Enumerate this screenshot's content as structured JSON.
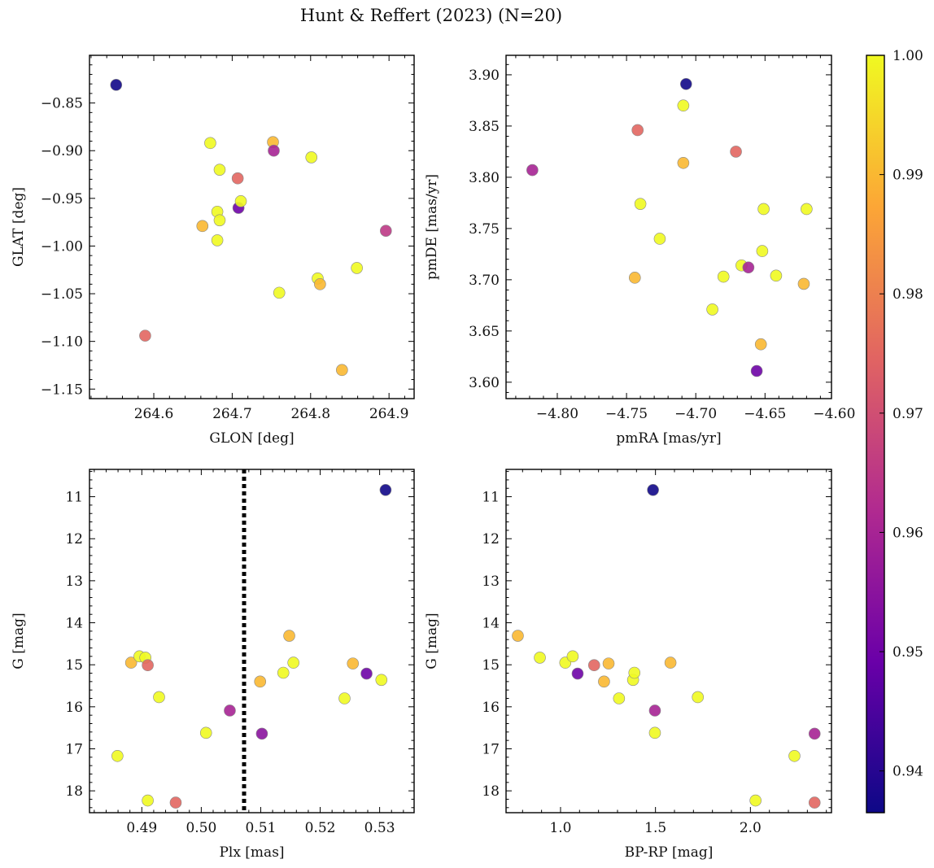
{
  "figure": {
    "title": "Hunt & Reffert (2023) (N=20)"
  },
  "colors": {
    "colormap": [
      "#0d0887",
      "#6a00a8",
      "#b12a90",
      "#e16462",
      "#fca636",
      "#f0f921"
    ],
    "reference_line": "#000000",
    "marker_edge": "#888888"
  },
  "colorbar": {
    "range": [
      0.9365,
      1.0
    ],
    "ticks": [
      0.94,
      0.95,
      0.96,
      0.97,
      0.98,
      0.99,
      1.0
    ],
    "tick_labels": [
      "0.94",
      "0.95",
      "0.96",
      "0.97",
      "0.98",
      "0.99",
      "1.00"
    ]
  },
  "chart_data": [
    {
      "type": "scatter",
      "xlabel": "GLON [deg]",
      "ylabel": "GLAT [deg]",
      "xlim": [
        264.518,
        264.932
      ],
      "ylim": [
        -1.16,
        -0.8
      ],
      "invert_y": false,
      "xticks": [
        264.6,
        264.7,
        264.8,
        264.9
      ],
      "xtick_labels": [
        "264.6",
        "264.7",
        "264.8",
        "264.9"
      ],
      "yticks": [
        -0.85,
        -0.9,
        -0.95,
        -1.0,
        -1.05,
        -1.1,
        -1.15
      ],
      "ytick_labels": [
        "−0.85",
        "−0.90",
        "−0.95",
        "−1.00",
        "−1.05",
        "−1.10",
        "−1.15"
      ],
      "points": [
        {
          "x": 264.552,
          "y": -0.831,
          "c": 0.937
        },
        {
          "x": 264.589,
          "y": -1.094,
          "c": 0.975
        },
        {
          "x": 264.662,
          "y": -0.979,
          "c": 0.99
        },
        {
          "x": 264.672,
          "y": -0.892,
          "c": 1.0
        },
        {
          "x": 264.681,
          "y": -0.964,
          "c": 1.0
        },
        {
          "x": 264.681,
          "y": -0.994,
          "c": 1.0
        },
        {
          "x": 264.684,
          "y": -0.92,
          "c": 1.0
        },
        {
          "x": 264.684,
          "y": -0.973,
          "c": 1.0
        },
        {
          "x": 264.707,
          "y": -0.929,
          "c": 0.975
        },
        {
          "x": 264.708,
          "y": -0.96,
          "c": 0.95
        },
        {
          "x": 264.711,
          "y": -0.953,
          "c": 1.0
        },
        {
          "x": 264.752,
          "y": -0.891,
          "c": 0.99
        },
        {
          "x": 264.753,
          "y": -0.9,
          "c": 0.96
        },
        {
          "x": 264.76,
          "y": -1.049,
          "c": 1.0
        },
        {
          "x": 264.801,
          "y": -0.907,
          "c": 1.0
        },
        {
          "x": 264.809,
          "y": -1.034,
          "c": 1.0
        },
        {
          "x": 264.812,
          "y": -1.04,
          "c": 0.99
        },
        {
          "x": 264.84,
          "y": -1.13,
          "c": 0.99
        },
        {
          "x": 264.859,
          "y": -1.023,
          "c": 1.0
        },
        {
          "x": 264.896,
          "y": -0.984,
          "c": 0.965
        }
      ]
    },
    {
      "type": "scatter",
      "xlabel": "pmRA [mas/yr]",
      "ylabel": "pmDE [mas/yr]",
      "xlim": [
        -4.837,
        -4.602
      ],
      "ylim": [
        3.584,
        3.919
      ],
      "invert_y": false,
      "xticks": [
        -4.8,
        -4.75,
        -4.7,
        -4.65,
        -4.6
      ],
      "xtick_labels": [
        "−4.80",
        "−4.75",
        "−4.70",
        "−4.65",
        "−4.60"
      ],
      "yticks": [
        3.6,
        3.65,
        3.7,
        3.75,
        3.8,
        3.85,
        3.9
      ],
      "ytick_labels": [
        "3.60",
        "3.65",
        "3.70",
        "3.75",
        "3.80",
        "3.85",
        "3.90"
      ],
      "points": [
        {
          "x": -4.818,
          "y": 3.807,
          "c": 0.96
        },
        {
          "x": -4.744,
          "y": 3.702,
          "c": 0.99
        },
        {
          "x": -4.742,
          "y": 3.846,
          "c": 0.975
        },
        {
          "x": -4.74,
          "y": 3.774,
          "c": 1.0
        },
        {
          "x": -4.726,
          "y": 3.74,
          "c": 1.0
        },
        {
          "x": -4.709,
          "y": 3.814,
          "c": 0.99
        },
        {
          "x": -4.709,
          "y": 3.87,
          "c": 1.0
        },
        {
          "x": -4.707,
          "y": 3.891,
          "c": 0.937
        },
        {
          "x": -4.688,
          "y": 3.671,
          "c": 1.0
        },
        {
          "x": -4.68,
          "y": 3.703,
          "c": 1.0
        },
        {
          "x": -4.671,
          "y": 3.825,
          "c": 0.975
        },
        {
          "x": -4.667,
          "y": 3.714,
          "c": 1.0
        },
        {
          "x": -4.662,
          "y": 3.712,
          "c": 0.96
        },
        {
          "x": -4.656,
          "y": 3.611,
          "c": 0.95
        },
        {
          "x": -4.653,
          "y": 3.637,
          "c": 0.99
        },
        {
          "x": -4.652,
          "y": 3.728,
          "c": 1.0
        },
        {
          "x": -4.651,
          "y": 3.769,
          "c": 1.0
        },
        {
          "x": -4.642,
          "y": 3.704,
          "c": 1.0
        },
        {
          "x": -4.622,
          "y": 3.696,
          "c": 0.99
        },
        {
          "x": -4.62,
          "y": 3.769,
          "c": 1.0
        }
      ]
    },
    {
      "type": "scatter",
      "xlabel": "Plx [mas]",
      "ylabel": "G [mag]",
      "xlim": [
        0.4812,
        0.5358
      ],
      "ylim": [
        10.35,
        18.52
      ],
      "invert_y": true,
      "reference_x": 0.5072,
      "xticks": [
        0.49,
        0.5,
        0.51,
        0.52,
        0.53
      ],
      "xtick_labels": [
        "0.49",
        "0.50",
        "0.51",
        "0.52",
        "0.53"
      ],
      "yticks": [
        11,
        12,
        13,
        14,
        15,
        16,
        17,
        18
      ],
      "ytick_labels": [
        "11",
        "12",
        "13",
        "14",
        "15",
        "16",
        "17",
        "18"
      ],
      "points": [
        {
          "x": 0.4859,
          "y": 17.17,
          "c": 1.0
        },
        {
          "x": 0.4882,
          "y": 14.95,
          "c": 0.99
        },
        {
          "x": 0.4896,
          "y": 14.8,
          "c": 1.0
        },
        {
          "x": 0.4906,
          "y": 14.83,
          "c": 1.0
        },
        {
          "x": 0.491,
          "y": 15.01,
          "c": 0.975
        },
        {
          "x": 0.491,
          "y": 18.23,
          "c": 1.0
        },
        {
          "x": 0.4929,
          "y": 15.77,
          "c": 1.0
        },
        {
          "x": 0.4957,
          "y": 18.28,
          "c": 0.975
        },
        {
          "x": 0.5008,
          "y": 16.62,
          "c": 1.0
        },
        {
          "x": 0.5048,
          "y": 16.09,
          "c": 0.96
        },
        {
          "x": 0.5099,
          "y": 15.4,
          "c": 0.99
        },
        {
          "x": 0.5102,
          "y": 16.64,
          "c": 0.955
        },
        {
          "x": 0.5138,
          "y": 15.19,
          "c": 1.0
        },
        {
          "x": 0.5148,
          "y": 14.31,
          "c": 0.99
        },
        {
          "x": 0.5155,
          "y": 14.95,
          "c": 1.0
        },
        {
          "x": 0.5241,
          "y": 15.8,
          "c": 1.0
        },
        {
          "x": 0.5255,
          "y": 14.97,
          "c": 0.99
        },
        {
          "x": 0.5278,
          "y": 15.21,
          "c": 0.95
        },
        {
          "x": 0.5303,
          "y": 15.36,
          "c": 1.0
        },
        {
          "x": 0.531,
          "y": 10.84,
          "c": 0.937
        }
      ]
    },
    {
      "type": "scatter",
      "xlabel": "BP-RP [mag]",
      "ylabel": "G [mag]",
      "xlim": [
        0.713,
        2.427
      ],
      "ylim": [
        10.35,
        18.52
      ],
      "invert_y": true,
      "xticks": [
        1.0,
        1.5,
        2.0
      ],
      "xtick_labels": [
        "1.0",
        "1.5",
        "2.0"
      ],
      "yticks": [
        11,
        12,
        13,
        14,
        15,
        16,
        17,
        18
      ],
      "ytick_labels": [
        "11",
        "12",
        "13",
        "14",
        "15",
        "16",
        "17",
        "18"
      ],
      "points": [
        {
          "x": 0.775,
          "y": 14.31,
          "c": 0.99
        },
        {
          "x": 0.891,
          "y": 14.83,
          "c": 1.0
        },
        {
          "x": 1.025,
          "y": 14.95,
          "c": 1.0
        },
        {
          "x": 1.064,
          "y": 14.8,
          "c": 1.0
        },
        {
          "x": 1.09,
          "y": 15.21,
          "c": 0.95
        },
        {
          "x": 1.177,
          "y": 15.01,
          "c": 0.975
        },
        {
          "x": 1.229,
          "y": 15.4,
          "c": 0.99
        },
        {
          "x": 1.253,
          "y": 14.97,
          "c": 0.99
        },
        {
          "x": 1.308,
          "y": 15.8,
          "c": 1.0
        },
        {
          "x": 1.382,
          "y": 15.36,
          "c": 1.0
        },
        {
          "x": 1.389,
          "y": 15.19,
          "c": 1.0
        },
        {
          "x": 1.487,
          "y": 10.84,
          "c": 0.937
        },
        {
          "x": 1.497,
          "y": 16.09,
          "c": 0.96
        },
        {
          "x": 1.497,
          "y": 16.62,
          "c": 1.0
        },
        {
          "x": 1.579,
          "y": 14.95,
          "c": 0.99
        },
        {
          "x": 1.723,
          "y": 15.77,
          "c": 1.0
        },
        {
          "x": 2.027,
          "y": 18.23,
          "c": 1.0
        },
        {
          "x": 2.232,
          "y": 17.17,
          "c": 1.0
        },
        {
          "x": 2.338,
          "y": 16.64,
          "c": 0.96
        },
        {
          "x": 2.338,
          "y": 18.28,
          "c": 0.975
        }
      ]
    }
  ]
}
